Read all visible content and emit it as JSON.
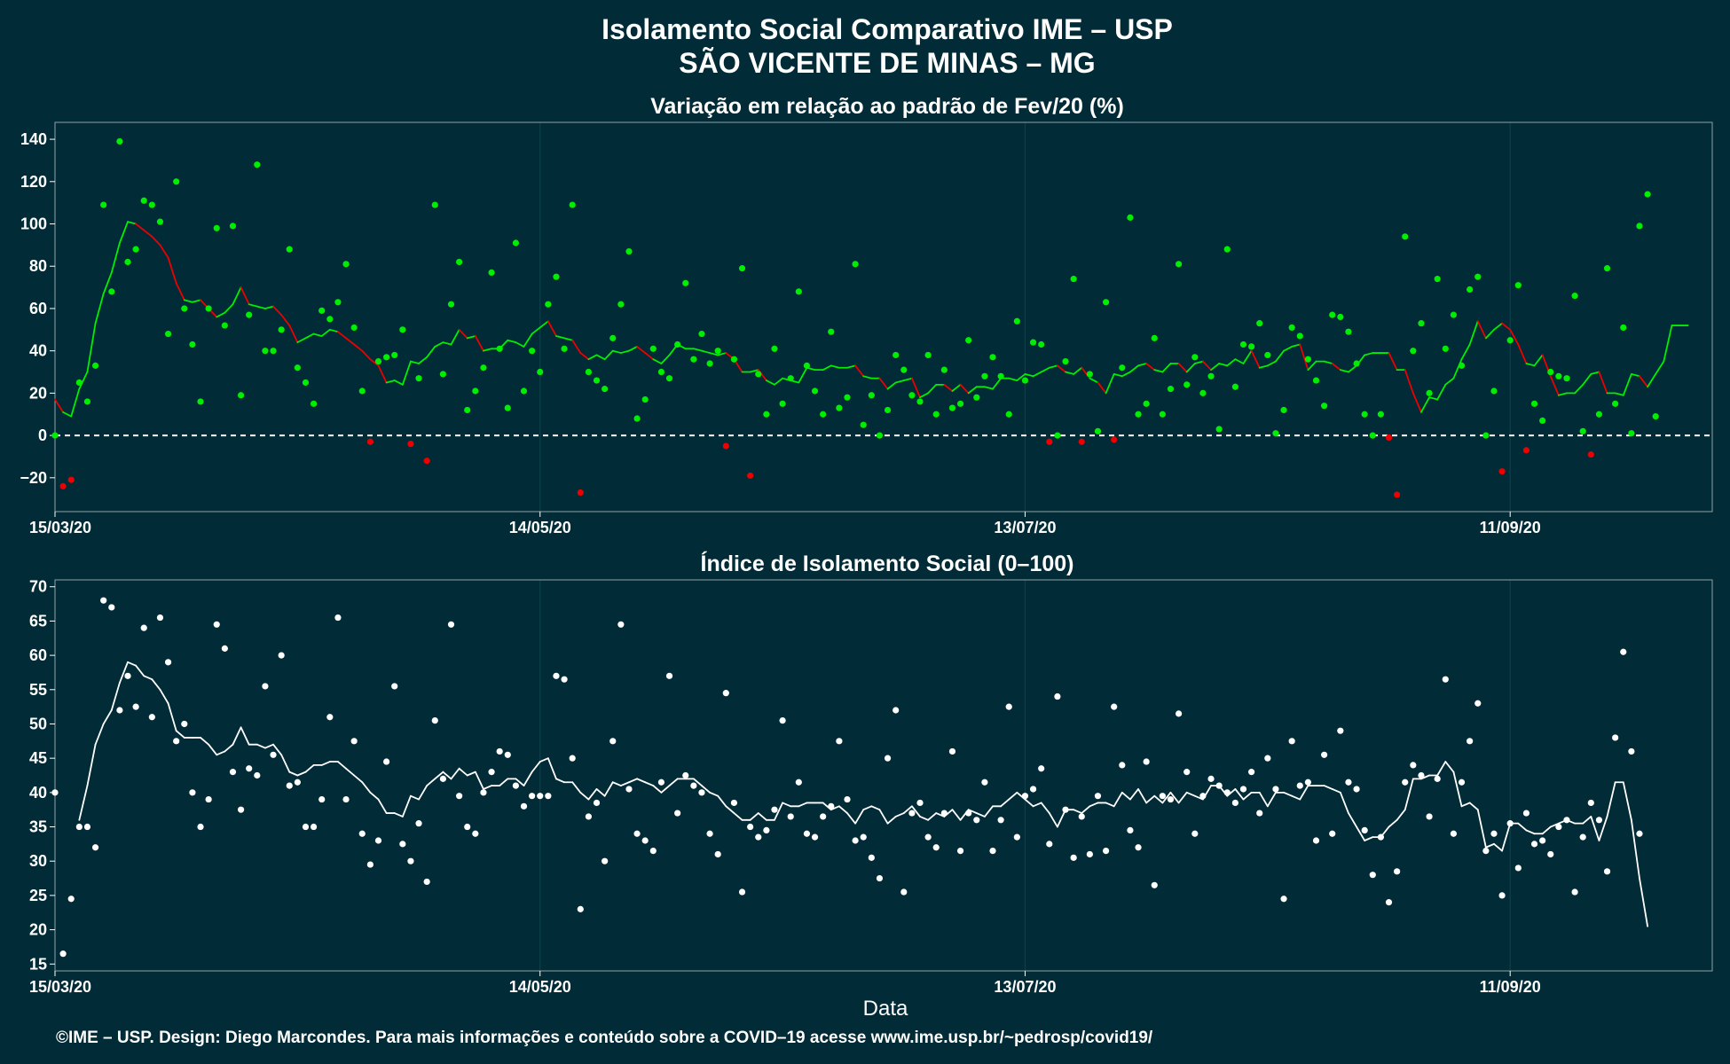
{
  "title_line1": "Isolamento Social Comparativo IME – USP",
  "title_line2": "SÃO VICENTE DE MINAS – MG",
  "xlabel": "Data",
  "footer": "©IME – USP. Design: Diego Marcondes. Para mais informações e conteúdo sobre a COVID–19 acesse www.ime.usp.br/~pedrosp/covid19/",
  "colors": {
    "background": "#012b36",
    "positive": "#00ee00",
    "negative": "#ee0000",
    "index": "#ffffff",
    "grid": "#0f3f4c"
  },
  "chart_data": [
    {
      "type": "scatter",
      "title": "Variação em relação ao padrão de Fev/20 (%)",
      "ylim": [
        -36,
        148
      ],
      "yticks": [
        -20,
        0,
        20,
        40,
        60,
        80,
        100,
        120,
        140
      ],
      "xlim": [
        0,
        205
      ],
      "xticks": [
        {
          "x": 0,
          "label": "15/03/20"
        },
        {
          "x": 60,
          "label": "14/05/20"
        },
        {
          "x": 120,
          "label": "13/07/20"
        },
        {
          "x": 180,
          "label": "11/09/20"
        }
      ],
      "reference_line": 0,
      "series": [
        {
          "type": "scatter",
          "values": [
            0,
            -24,
            -21,
            25,
            16,
            33,
            109,
            68,
            139,
            82,
            88,
            111,
            109,
            101,
            48,
            120,
            60,
            43,
            16,
            60,
            98,
            52,
            99,
            19,
            57,
            128,
            40,
            40,
            50,
            88,
            32,
            25,
            15,
            59,
            55,
            63,
            81,
            51,
            21,
            -3,
            35,
            37,
            38,
            50,
            -4,
            27,
            -12,
            109,
            29,
            62,
            82,
            12,
            21,
            32,
            77,
            41,
            13,
            91,
            21,
            40,
            30,
            62,
            75,
            41,
            109,
            -27,
            30,
            26,
            22,
            46,
            62,
            87,
            8,
            17,
            41,
            30,
            27,
            43,
            72,
            36,
            48,
            34,
            40,
            -5,
            36,
            79,
            -19,
            29,
            10,
            41,
            15,
            27,
            68,
            33,
            21,
            10,
            49,
            13,
            18,
            81,
            5,
            19,
            0,
            12,
            38,
            31,
            19,
            16,
            38,
            10,
            31,
            13,
            15,
            45,
            18,
            28,
            37,
            28,
            10,
            54,
            26,
            44,
            43,
            -3,
            0,
            35,
            74,
            -3,
            29,
            2,
            63,
            -2,
            32,
            103,
            10,
            15,
            46,
            10,
            22,
            81,
            24,
            37,
            20,
            28,
            3,
            88,
            23,
            43,
            42,
            53,
            38,
            1,
            12,
            51,
            47,
            36,
            26,
            14,
            57,
            56,
            49,
            34,
            10,
            0,
            10,
            -1,
            -28,
            94,
            40,
            53,
            20,
            74,
            41,
            57,
            33,
            69,
            75,
            0,
            21,
            -17,
            45,
            71,
            -7,
            15,
            7,
            30,
            28,
            27,
            66,
            2,
            -9,
            10,
            79,
            15,
            51,
            1,
            99,
            114,
            9
          ]
        },
        {
          "type": "line",
          "values": [
            17,
            11,
            9,
            22,
            30,
            53,
            67,
            77,
            91,
            101,
            100,
            97,
            94,
            90,
            84,
            72,
            64,
            63,
            64,
            60,
            56,
            58,
            62,
            70,
            62,
            61,
            60,
            61,
            57,
            52,
            44,
            46,
            48,
            47,
            50,
            49,
            46,
            43,
            40,
            36,
            33,
            25,
            26,
            24,
            35,
            34,
            37,
            42,
            44,
            43,
            50,
            46,
            47,
            40,
            41,
            41,
            45,
            44,
            42,
            48,
            51,
            54,
            47,
            46,
            45,
            39,
            36,
            38,
            36,
            40,
            39,
            40,
            42,
            39,
            36,
            34,
            38,
            43,
            41,
            41,
            40,
            39,
            38,
            39,
            36,
            30,
            30,
            31,
            26,
            24,
            27,
            26,
            25,
            32,
            31,
            31,
            33,
            32,
            32,
            33,
            28,
            27,
            27,
            22,
            25,
            26,
            27,
            18,
            20,
            24,
            24,
            21,
            24,
            20,
            23,
            23,
            22,
            27,
            27,
            26,
            29,
            28,
            30,
            32,
            33,
            30,
            29,
            32,
            27,
            25,
            20,
            29,
            28,
            30,
            33,
            34,
            31,
            30,
            34,
            34,
            30,
            34,
            35,
            31,
            34,
            33,
            36,
            34,
            40,
            32,
            33,
            35,
            40,
            42,
            43,
            31,
            35,
            35,
            34,
            31,
            30,
            33,
            38,
            39,
            39,
            39,
            31,
            31,
            20,
            11,
            18,
            17,
            24,
            27,
            36,
            43,
            54,
            46,
            50,
            53,
            50,
            43,
            34,
            33,
            38,
            28,
            19,
            20,
            20,
            24,
            29,
            30,
            20,
            20,
            19,
            29,
            28,
            23,
            29,
            35,
            52,
            52,
            52
          ]
        }
      ]
    },
    {
      "type": "scatter",
      "title": "Índice de Isolamento Social (0–100)",
      "ylim": [
        14,
        71
      ],
      "yticks": [
        15,
        20,
        25,
        30,
        35,
        40,
        45,
        50,
        55,
        60,
        65,
        70
      ],
      "xlim": [
        0,
        205
      ],
      "xticks": [
        {
          "x": 0,
          "label": "15/03/20"
        },
        {
          "x": 60,
          "label": "14/05/20"
        },
        {
          "x": 120,
          "label": "13/07/20"
        },
        {
          "x": 180,
          "label": "11/09/20"
        }
      ],
      "series": [
        {
          "type": "scatter",
          "values": [
            40,
            16.5,
            24.5,
            35,
            35,
            32,
            68,
            67,
            52,
            57,
            52.5,
            64,
            51,
            65.5,
            59,
            47.5,
            50,
            40,
            35,
            39,
            64.5,
            61,
            43,
            37.5,
            43.5,
            42.5,
            55.5,
            45.5,
            60,
            41,
            41.5,
            35,
            35,
            39,
            51,
            65.5,
            39,
            47.5,
            34,
            29.5,
            33,
            44.5,
            55.5,
            32.5,
            30,
            35.5,
            27,
            50.5,
            42,
            64.5,
            39.5,
            35,
            34,
            40,
            43,
            46,
            45.5,
            41,
            38,
            39.5,
            39.5,
            39.5,
            57,
            56.5,
            45,
            23,
            36.5,
            38.5,
            30,
            47.5,
            64.5,
            40.5,
            34,
            33,
            31.5,
            41.5,
            57,
            37,
            42.5,
            41,
            40,
            34,
            31,
            54.5,
            38.5,
            25.5,
            35,
            33.5,
            34.5,
            37.5,
            50.5,
            36.5,
            41.5,
            34,
            33.5,
            36.5,
            38,
            47.5,
            39,
            33,
            33.5,
            30.5,
            27.5,
            45,
            52,
            25.5,
            37,
            38.5,
            33.5,
            32,
            37,
            46,
            31.5,
            37,
            36,
            41.5,
            31.5,
            36,
            52.5,
            33.5,
            39.5,
            40.5,
            43.5,
            32.5,
            54,
            37.5,
            30.5,
            36.5,
            31,
            39.5,
            31.5,
            52.5,
            44,
            34.5,
            32,
            44.5,
            26.5,
            39.5,
            39,
            51.5,
            43,
            34,
            39.5,
            42,
            41,
            40,
            38.5,
            40.5,
            43,
            37,
            45,
            40.5,
            24.5,
            47.5,
            41,
            41.5,
            33,
            45.5,
            34,
            49,
            41.5,
            40.5,
            34.5,
            28,
            33.5,
            24,
            28.5,
            41.5,
            44,
            42.5,
            36.5,
            42,
            56.5,
            34,
            41.5,
            47.5,
            53,
            31.5,
            34,
            25,
            35.5,
            29,
            37,
            32.5,
            33,
            31,
            35,
            36,
            25.5,
            33.5,
            38.5,
            36,
            28.5,
            48,
            60.5,
            46,
            34
          ]
        },
        {
          "type": "line",
          "values": [
            null,
            null,
            null,
            36,
            41,
            47,
            50,
            52,
            56,
            59,
            58.5,
            57,
            56.5,
            55,
            53,
            49,
            48,
            48,
            48,
            47,
            45.5,
            46,
            47,
            49.5,
            47,
            47,
            46.5,
            47,
            45.5,
            43,
            42.5,
            43,
            44,
            44,
            44.5,
            44.5,
            43.5,
            42.5,
            41.5,
            40,
            39,
            37,
            37,
            36.5,
            39.5,
            39,
            41,
            42,
            43,
            42,
            43.5,
            42.5,
            43,
            40.5,
            41,
            41,
            42,
            42,
            41,
            43,
            44.5,
            45,
            42,
            41.5,
            41.5,
            40,
            39,
            40.5,
            39.5,
            41.5,
            41,
            41.5,
            42,
            41.5,
            41,
            40,
            41,
            42,
            42,
            42,
            41,
            40,
            39.5,
            38,
            37,
            36,
            36,
            37,
            36,
            36,
            38.5,
            38,
            38,
            38.5,
            38.5,
            38.5,
            37.5,
            38,
            37,
            35.5,
            37.5,
            38,
            37.5,
            35.5,
            36.5,
            37,
            38,
            36.5,
            36,
            37,
            36.5,
            37.5,
            36,
            37.5,
            37,
            36.5,
            38,
            38,
            39,
            40,
            39,
            38,
            38.5,
            37,
            35,
            37.5,
            37.5,
            37,
            38,
            38.5,
            38.5,
            38,
            40,
            39,
            40.5,
            38.5,
            39.5,
            38.5,
            40,
            38.5,
            40,
            39.5,
            39,
            41,
            41,
            39.5,
            40.5,
            39,
            40,
            40,
            38,
            40,
            40,
            39.5,
            39,
            41,
            41,
            41,
            40.5,
            40,
            37,
            35,
            33,
            33.5,
            33.5,
            35,
            36,
            37.5,
            42,
            42,
            42.5,
            42.5,
            44.5,
            43,
            38,
            38.5,
            37.5,
            32,
            32.5,
            31.5,
            35.5,
            35.5,
            34.5,
            34,
            34,
            35,
            35.5,
            36,
            35.5,
            35.5,
            36.5,
            33,
            36.5,
            41.5,
            41.5,
            36,
            27.5,
            20.5
          ]
        }
      ]
    }
  ]
}
